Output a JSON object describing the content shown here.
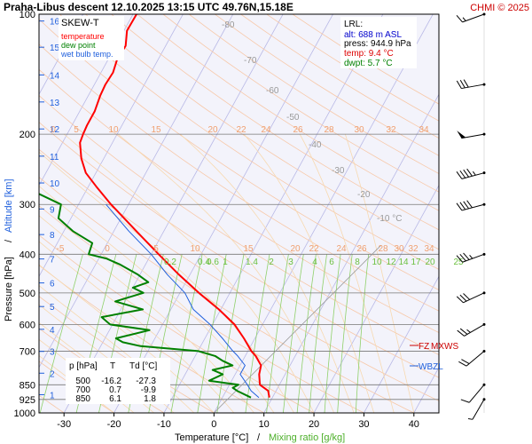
{
  "header": {
    "title": "Praha-Libus   descent   12.10.2025 13:15 UTC  49.76N,15.18E",
    "copyright": "CHMI © 2025"
  },
  "legend": {
    "title": "SKEW-T",
    "items": [
      {
        "label": "temperature",
        "color": "#ff0000"
      },
      {
        "label": "dew point",
        "color": "#008000"
      },
      {
        "label": "wet bulb temp.",
        "color": "#1f5fdc"
      }
    ]
  },
  "lrl": {
    "title": "LRL:",
    "items": [
      {
        "text": "alt: 688 m ASL",
        "color": "#0000cc"
      },
      {
        "text": "press: 944.9 hPa",
        "color": "#000000"
      },
      {
        "text": "temp: 9.4 °C",
        "color": "#dd0000"
      },
      {
        "text": "dwpt: 5.7 °C",
        "color": "#008000"
      }
    ]
  },
  "table": {
    "headers": [
      "p [hPa]",
      "T",
      "Td [°C]"
    ],
    "rows": [
      [
        "500",
        "-16.2",
        "-27.3"
      ],
      [
        "700",
        "0.7",
        "-9.9"
      ],
      [
        "850",
        "6.1",
        "1.8"
      ]
    ]
  },
  "markers": {
    "fz": "FZ",
    "mxws": "MXWS",
    "wbzl": "WBZL"
  },
  "chart_data": {
    "type": "line",
    "title": "Praha-Libus   descent   12.10.2025 13:15 UTC  49.76N,15.18E",
    "xlabel": "Temperature [°C]",
    "xlabel_sep": "/",
    "xlabel2": "Mixing ratio [g/kg]",
    "ylabel_pressure": "Pressure [hPa]",
    "ylabel_sep": "/",
    "ylabel_alt": "Altitude [km]",
    "xlim": [
      -35,
      45
    ],
    "pressure_range": [
      1000,
      100
    ],
    "x_ticks": [
      -30,
      -20,
      -10,
      0,
      10,
      20,
      30,
      40
    ],
    "pressure_ticks": [
      100,
      200,
      300,
      400,
      500,
      600,
      700,
      850,
      925,
      1000
    ],
    "altitude_ticks": [
      1,
      2,
      3,
      4,
      5,
      6,
      7,
      8,
      9,
      10,
      11,
      12,
      13,
      14,
      15,
      16
    ],
    "dry_adiabat_labels": [
      -80,
      -70,
      -60,
      -50,
      -40,
      -30,
      -20,
      -10
    ],
    "dry_adiabat_unit": "°C",
    "mixing_ratio_labels": [
      "0.2",
      "0.4",
      "0.6",
      "1",
      "1.4",
      "2",
      "3",
      "4",
      "6",
      "8",
      "10",
      "12",
      "14",
      "17",
      "20",
      "25"
    ],
    "moist_labels_row1": [
      0,
      5,
      10,
      15,
      20,
      22,
      24,
      26,
      28,
      30,
      32,
      34
    ],
    "moist_labels_row2": [
      -5,
      0,
      5,
      10,
      15,
      20,
      22,
      24,
      26,
      28,
      30,
      32,
      34
    ],
    "series": [
      {
        "name": "temperature",
        "color": "#ff0000",
        "points": [
          [
            915,
            9.4
          ],
          [
            880,
            8.4
          ],
          [
            850,
            6.1
          ],
          [
            800,
            4.8
          ],
          [
            760,
            4.2
          ],
          [
            720,
            2.1
          ],
          [
            700,
            0.7
          ],
          [
            650,
            -2.2
          ],
          [
            600,
            -5.6
          ],
          [
            550,
            -10.4
          ],
          [
            500,
            -16.2
          ],
          [
            450,
            -22.2
          ],
          [
            400,
            -28.5
          ],
          [
            350,
            -35.5
          ],
          [
            300,
            -43.5
          ],
          [
            270,
            -48.5
          ],
          [
            250,
            -52.0
          ],
          [
            230,
            -54.5
          ],
          [
            210,
            -56.5
          ],
          [
            200,
            -56.8
          ],
          [
            190,
            -57.0
          ],
          [
            175,
            -57.0
          ],
          [
            160,
            -57.6
          ],
          [
            150,
            -57.8
          ],
          [
            140,
            -57.6
          ],
          [
            130,
            -58.2
          ],
          [
            120,
            -58.0
          ],
          [
            110,
            -59.4
          ],
          [
            100,
            -59.3
          ]
        ]
      },
      {
        "name": "dew point",
        "color": "#008000",
        "points": [
          [
            915,
            5.7
          ],
          [
            880,
            2.2
          ],
          [
            865,
            1.0
          ],
          [
            850,
            1.8
          ],
          [
            830,
            -4.5
          ],
          [
            800,
            -2.5
          ],
          [
            780,
            -5.0
          ],
          [
            760,
            -1.5
          ],
          [
            740,
            -4.0
          ],
          [
            720,
            -6.0
          ],
          [
            700,
            -9.9
          ],
          [
            680,
            -22.0
          ],
          [
            665,
            -26.0
          ],
          [
            650,
            -27.8
          ],
          [
            620,
            -22.0
          ],
          [
            600,
            -30.5
          ],
          [
            575,
            -33.0
          ],
          [
            550,
            -25.6
          ],
          [
            525,
            -32.0
          ],
          [
            500,
            -27.3
          ],
          [
            485,
            -30.0
          ],
          [
            470,
            -27.5
          ],
          [
            450,
            -30.4
          ],
          [
            425,
            -35.0
          ],
          [
            410,
            -38.5
          ],
          [
            400,
            -42.5
          ],
          [
            375,
            -43.0
          ],
          [
            350,
            -48.2
          ],
          [
            325,
            -52.5
          ],
          [
            300,
            -53.5
          ],
          [
            280,
            -59.8
          ],
          [
            250,
            -65.0
          ],
          [
            230,
            -71.2
          ],
          [
            220,
            -72.0
          ],
          [
            200,
            -74.5
          ],
          [
            180,
            -78.0
          ],
          [
            160,
            -81.0
          ],
          [
            140,
            -85.5
          ],
          [
            120,
            -89.5
          ],
          [
            100,
            -93.5
          ]
        ]
      },
      {
        "name": "wet bulb temp.",
        "color": "#1f5fdc",
        "points": [
          [
            915,
            7.3
          ],
          [
            880,
            5.0
          ],
          [
            850,
            3.6
          ],
          [
            800,
            1.0
          ],
          [
            760,
            1.0
          ],
          [
            720,
            -1.5
          ],
          [
            700,
            -3.0
          ],
          [
            650,
            -6.5
          ],
          [
            600,
            -10.5
          ],
          [
            550,
            -15.5
          ],
          [
            500,
            -19.0
          ],
          [
            450,
            -24.5
          ],
          [
            400,
            -30.0
          ],
          [
            350,
            -37.0
          ],
          [
            300,
            -44.5
          ]
        ]
      }
    ],
    "wind_barbs": [
      {
        "p": 100,
        "dir": 250,
        "spd": 15
      },
      {
        "p": 150,
        "dir": 260,
        "spd": 30
      },
      {
        "p": 200,
        "dir": 260,
        "spd": 50
      },
      {
        "p": 250,
        "dir": 255,
        "spd": 45
      },
      {
        "p": 300,
        "dir": 255,
        "spd": 40
      },
      {
        "p": 400,
        "dir": 250,
        "spd": 35
      },
      {
        "p": 500,
        "dir": 245,
        "spd": 30
      },
      {
        "p": 600,
        "dir": 240,
        "spd": 25
      },
      {
        "p": 700,
        "dir": 230,
        "spd": 20
      },
      {
        "p": 850,
        "dir": 220,
        "spd": 10
      },
      {
        "p": 925,
        "dir": 210,
        "spd": 5
      }
    ],
    "grid": true
  }
}
